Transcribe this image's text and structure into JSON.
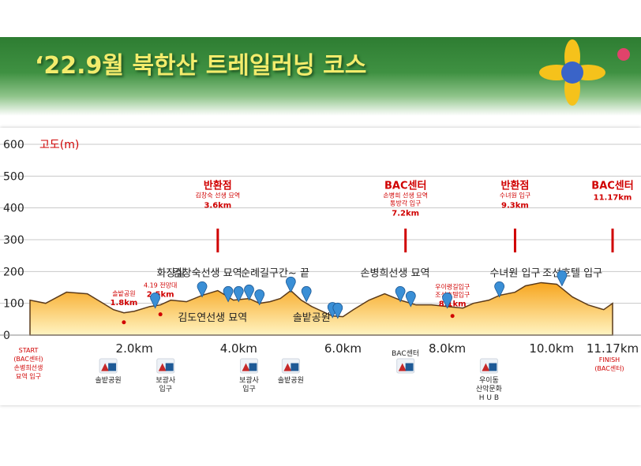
{
  "title": "‘22.9월 북한산 트레일러닝 코스",
  "colors": {
    "route_marker": "#d00000",
    "fill_top": "#f7a51e",
    "fill_bottom": "#fff4c2",
    "pin": "#3a8fd6",
    "title": "#f3ec6c"
  },
  "chart_data": {
    "type": "area",
    "ylabel": "고도(m)",
    "ylim": [
      0,
      600
    ],
    "yticks": [
      "0",
      "100",
      "200",
      "300",
      "400",
      "500",
      "600"
    ],
    "xlim": [
      0,
      11.17
    ],
    "xticks": [
      {
        "x": 2.0,
        "label": "2.0km"
      },
      {
        "x": 4.0,
        "label": "4.0km"
      },
      {
        "x": 6.0,
        "label": "6.0km"
      },
      {
        "x": 8.0,
        "label": "8.0km"
      },
      {
        "x": 10.0,
        "label": "10.0km"
      },
      {
        "x": 11.17,
        "label": "11.17km"
      }
    ],
    "grid": true,
    "x": [
      0,
      0.3,
      0.7,
      1.1,
      1.4,
      1.6,
      1.8,
      2.0,
      2.3,
      2.5,
      2.7,
      3.0,
      3.3,
      3.6,
      3.9,
      4.2,
      4.4,
      4.6,
      4.8,
      5.0,
      5.2,
      5.4,
      5.6,
      5.8,
      6.0,
      6.2,
      6.5,
      6.8,
      7.1,
      7.4,
      7.7,
      8.0,
      8.3,
      8.5,
      8.8,
      9.0,
      9.3,
      9.5,
      9.8,
      10.1,
      10.4,
      10.7,
      11.0,
      11.17
    ],
    "y": [
      110,
      100,
      135,
      130,
      100,
      80,
      70,
      75,
      90,
      95,
      110,
      105,
      125,
      140,
      110,
      115,
      100,
      105,
      115,
      140,
      110,
      90,
      75,
      60,
      58,
      80,
      110,
      130,
      110,
      95,
      95,
      90,
      85,
      100,
      110,
      125,
      135,
      155,
      165,
      160,
      120,
      95,
      80,
      100
    ],
    "start_label": [
      "START",
      "(BAC센터)",
      "손병희선생",
      "묘역 입구"
    ],
    "finish_label": [
      "FINISH",
      "(BAC센터)"
    ],
    "annotations": [
      {
        "name": "반환점",
        "sub": "김창숙 선생 묘역",
        "dist": "3.6km",
        "x": 3.6
      },
      {
        "name": "BAC센터",
        "sub": "손병희 선생 묘역",
        "sub2": "통방각 입구",
        "dist": "7.2km",
        "x": 7.2
      },
      {
        "name": "반환점",
        "sub": "수녀원 입구",
        "dist": "9.3km",
        "x": 9.3
      },
      {
        "name": "BAC센터",
        "dist": "11.17km",
        "x": 11.17
      }
    ],
    "minor_points": [
      {
        "label": "솔밭공원",
        "dist": "1.8km",
        "x": 1.8
      },
      {
        "label": "4.19 전망대",
        "dist": "2.5km",
        "x": 2.5
      },
      {
        "label": "우이령길입구",
        "sub": "조선호텔입구",
        "dist": "8.1km",
        "x": 8.1
      }
    ],
    "places": [
      {
        "label": "화장실",
        "x": 2.7
      },
      {
        "label": "김창숙선생 묘역",
        "x": 3.4
      },
      {
        "label": "순례길구간~ 끝",
        "x": 4.7
      },
      {
        "label": "손병희선생 묘역",
        "x": 7.0
      },
      {
        "label": "수녀원 입구",
        "x": 9.3
      },
      {
        "label": "조선호텔 입구",
        "x": 10.4
      },
      {
        "label": "김도연선생 묘역",
        "x": 3.5
      },
      {
        "label": "솔밭공원",
        "x": 5.4
      }
    ],
    "pins_x": [
      2.4,
      3.3,
      3.8,
      4.0,
      4.4,
      4.2,
      5.0,
      5.3,
      5.8,
      5.9,
      7.1,
      7.3,
      8.0,
      9.0,
      10.2
    ],
    "facilities": [
      {
        "x": 1.5,
        "label": "솔밭공원",
        "label2": ""
      },
      {
        "x": 2.6,
        "label": "보광사",
        "label2": "입구"
      },
      {
        "x": 4.2,
        "label": "보광사",
        "label2": "입구"
      },
      {
        "x": 5.0,
        "label": "솔밭공원",
        "label2": ""
      },
      {
        "x": 7.2,
        "label": "BAC센터",
        "label2": "",
        "top": true
      },
      {
        "x": 8.8,
        "label": "우이동",
        "label2": "산악문화",
        "label3": "H U B"
      }
    ]
  }
}
